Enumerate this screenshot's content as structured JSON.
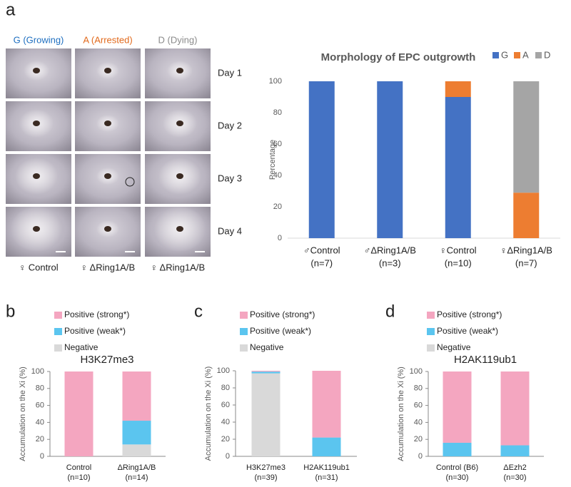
{
  "panel_labels": [
    "a",
    "b",
    "c",
    "d"
  ],
  "photo_grid": {
    "column_labels": [
      "G (Growing)",
      "A (Arrested)",
      "D (Dying)"
    ],
    "row_labels": [
      "Day 1",
      "Day 2",
      "Day 3",
      "Day 4"
    ],
    "genotype_labels": [
      "♀ Control",
      "♀ ΔRing1A/B",
      "♀ ΔRing1A/B"
    ]
  },
  "chart_data": [
    {
      "type": "stacked-bar",
      "title": "Morphology of  EPC outgrowth",
      "ylabel": "Percentage",
      "categories": [
        "♂Control",
        "♂ΔRing1A/B",
        "♀Control",
        "♀ΔRing1A/B"
      ],
      "sample_sizes": [
        "(n=7)",
        "(n=3)",
        "(n=10)",
        "(n=7)"
      ],
      "series": [
        {
          "name": "G",
          "color": "#4472c4",
          "values": [
            100,
            100,
            90,
            0
          ]
        },
        {
          "name": "A",
          "color": "#ed7d31",
          "values": [
            0,
            0,
            10,
            29
          ]
        },
        {
          "name": "D",
          "color": "#a5a5a5",
          "values": [
            0,
            0,
            0,
            71
          ]
        }
      ],
      "ylim": [
        0,
        100
      ],
      "yticks": [
        0,
        20,
        40,
        60,
        80,
        100
      ],
      "legend": "top-right"
    },
    {
      "type": "stacked-bar",
      "title": "H3K27me3",
      "ylabel": "Accumulation on the Xi (%)",
      "categories": [
        "Control",
        "ΔRing1A/B"
      ],
      "sample_sizes": [
        "(n=10)",
        "(n=14)"
      ],
      "series": [
        {
          "name": "Negative",
          "color": "#d9d9d9",
          "values": [
            0,
            14
          ]
        },
        {
          "name": "Positive (weak*)",
          "color": "#5bc5ef",
          "values": [
            0,
            28
          ]
        },
        {
          "name": "Positive (strong*)",
          "color": "#f4a6c0",
          "values": [
            100,
            58
          ]
        }
      ],
      "ylim": [
        0,
        100
      ],
      "yticks": [
        0,
        20,
        40,
        60,
        80,
        100
      ],
      "legend": "top"
    },
    {
      "type": "stacked-bar",
      "ylabel": "Accumulation on the Xi (%)",
      "categories": [
        "H3K27me3",
        "H2AK119ub1"
      ],
      "sample_sizes": [
        "(n=39)",
        "(n=31)"
      ],
      "series": [
        {
          "name": "Negative",
          "color": "#d9d9d9",
          "values": [
            97,
            0
          ]
        },
        {
          "name": "Positive (weak*)",
          "color": "#5bc5ef",
          "values": [
            2,
            22
          ]
        },
        {
          "name": "Positive (strong*)",
          "color": "#f4a6c0",
          "values": [
            1,
            78
          ]
        }
      ],
      "ylim": [
        0,
        100
      ],
      "yticks": [
        0,
        20,
        40,
        60,
        80,
        100
      ],
      "legend": "top"
    },
    {
      "type": "stacked-bar",
      "title": "H2AK119ub1",
      "ylabel": "Accumulation on the Xi (%)",
      "categories": [
        "Control (B6)",
        "ΔEzh2"
      ],
      "sample_sizes": [
        "(n=30)",
        "(n=30)"
      ],
      "series": [
        {
          "name": "Negative",
          "color": "#d9d9d9",
          "values": [
            0,
            0
          ]
        },
        {
          "name": "Positive (weak*)",
          "color": "#5bc5ef",
          "values": [
            16,
            13
          ]
        },
        {
          "name": "Positive (strong*)",
          "color": "#f4a6c0",
          "values": [
            84,
            87
          ]
        }
      ],
      "ylim": [
        0,
        100
      ],
      "yticks": [
        0,
        20,
        40,
        60,
        80,
        100
      ],
      "legend": "top"
    }
  ]
}
